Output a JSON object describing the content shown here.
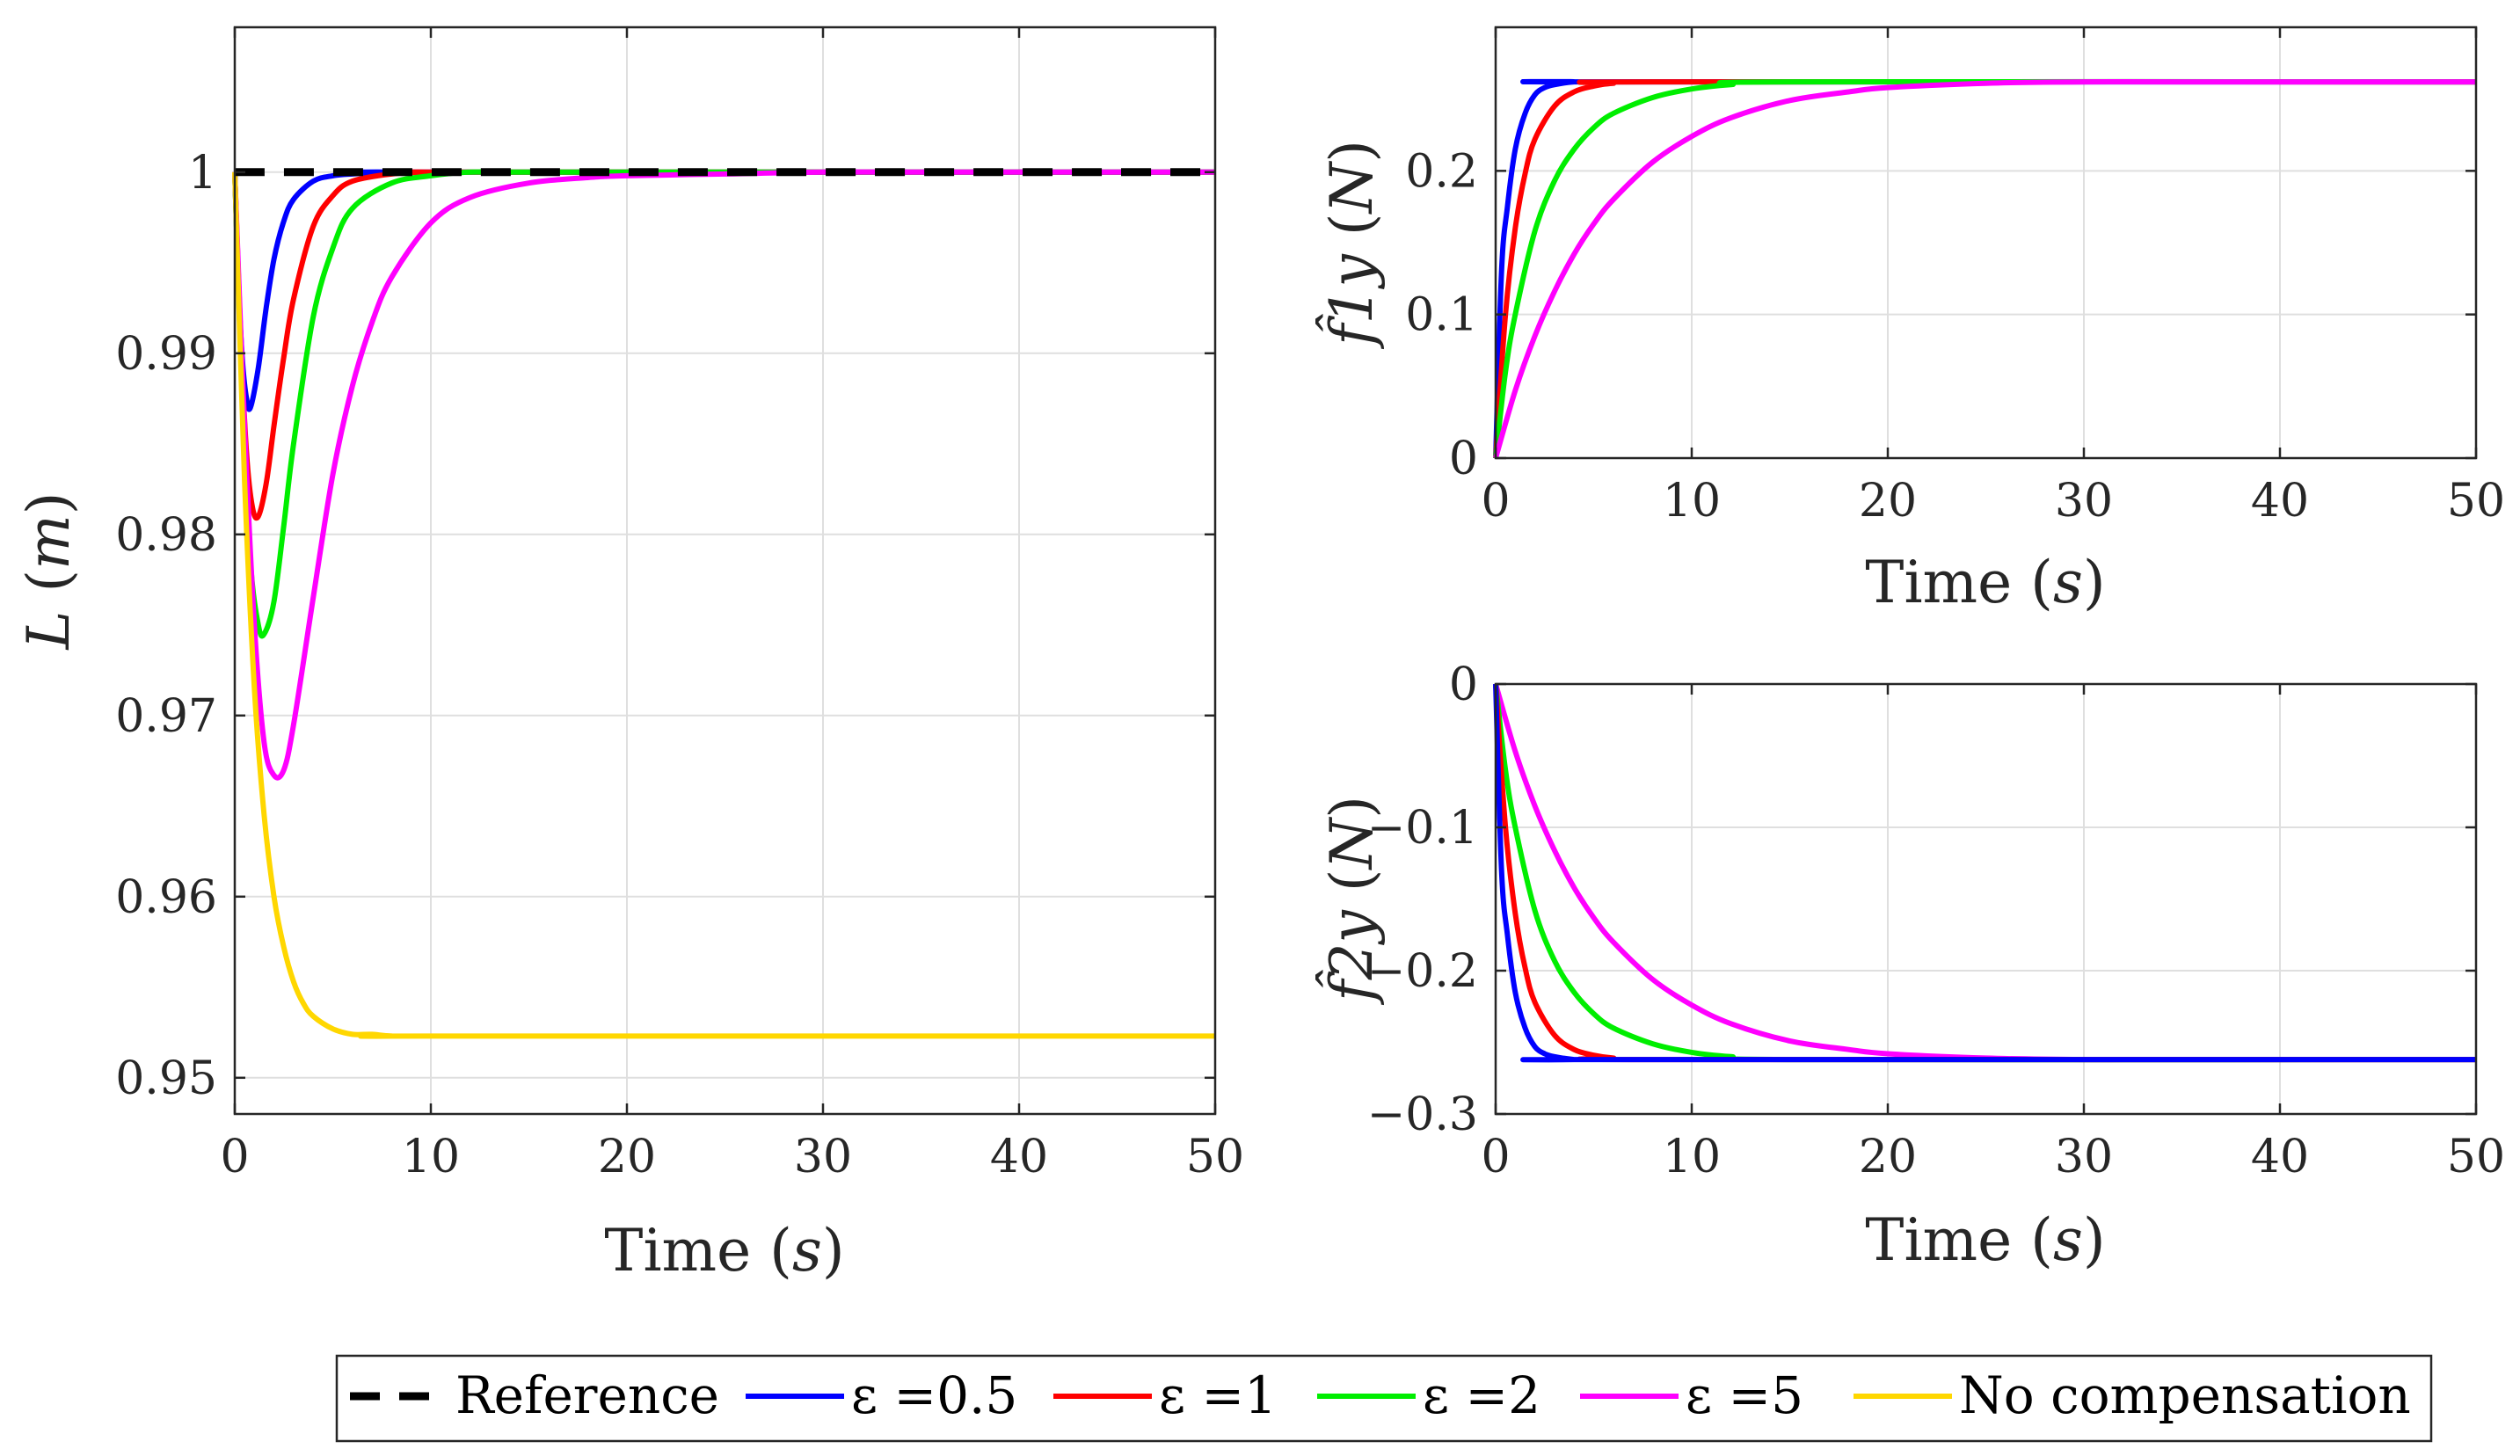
{
  "chart_data": [
    {
      "type": "line",
      "id": "L",
      "xlabel": "Time",
      "xlabel_unit": "s",
      "ylabel": "L",
      "ylabel_unit": "m",
      "xlim": [
        0,
        50
      ],
      "ylim": [
        0.948,
        1.008
      ],
      "xticks": [
        0,
        10,
        20,
        30,
        40,
        50
      ],
      "xtick_labels": [
        "0",
        "10",
        "20",
        "30",
        "40",
        "50"
      ],
      "yticks": [
        0.95,
        0.96,
        0.97,
        0.98,
        0.99,
        1
      ],
      "ytick_labels": [
        "0.95",
        "0.96",
        "0.97",
        "0.98",
        "0.99",
        "1"
      ],
      "grid": true,
      "series": [
        {
          "name": "Reference",
          "color": "#000000",
          "dashed": true,
          "x": [
            0,
            50
          ],
          "y": [
            1.0,
            1.0
          ]
        },
        {
          "name": "ε =0.5",
          "color": "#0000ff",
          "x": [
            0,
            0.2,
            0.4,
            0.6,
            0.8,
            1.2,
            1.6,
            2,
            2.5,
            3,
            4,
            5,
            6,
            8,
            10,
            50
          ],
          "y": [
            1.0,
            0.9935,
            0.9895,
            0.9875,
            0.987,
            0.9892,
            0.9925,
            0.9952,
            0.9973,
            0.9985,
            0.9995,
            0.9998,
            0.9999,
            1.0,
            1.0,
            1.0
          ]
        },
        {
          "name": "ε =1",
          "color": "#ff0000",
          "x": [
            0,
            0.3,
            0.6,
            0.9,
            1.2,
            1.6,
            2,
            2.5,
            3,
            4,
            5,
            6,
            8,
            10,
            12,
            50
          ],
          "y": [
            1.0,
            0.991,
            0.9845,
            0.9815,
            0.981,
            0.9828,
            0.986,
            0.9898,
            0.993,
            0.997,
            0.9987,
            0.9995,
            0.9999,
            1.0,
            1.0,
            1.0
          ]
        },
        {
          "name": "ε =2",
          "color": "#00ee00",
          "x": [
            0,
            0.4,
            0.8,
            1.2,
            1.5,
            2,
            2.5,
            3,
            4,
            5,
            6,
            8,
            10,
            12,
            15,
            20,
            50
          ],
          "y": [
            1.0,
            0.987,
            0.9785,
            0.975,
            0.9745,
            0.9763,
            0.9805,
            0.985,
            0.992,
            0.9958,
            0.998,
            0.9994,
            0.9998,
            1.0,
            1.0,
            1.0,
            1.0
          ]
        },
        {
          "name": "ε =5",
          "color": "#ff00ff",
          "x": [
            0,
            0.5,
            1,
            1.5,
            2,
            2.5,
            3,
            4,
            5,
            6,
            7,
            8,
            10,
            12,
            15,
            18,
            20,
            25,
            30,
            35,
            50
          ],
          "y": [
            1.0,
            0.986,
            0.975,
            0.9685,
            0.9667,
            0.967,
            0.9695,
            0.9765,
            0.9833,
            0.9882,
            0.9917,
            0.9942,
            0.9972,
            0.9986,
            0.9994,
            0.9997,
            0.9998,
            0.9999,
            1.0,
            1.0,
            1.0
          ]
        },
        {
          "name": "No compensation",
          "color": "#ffd700",
          "x": [
            0,
            0.5,
            1,
            1.5,
            2,
            2.5,
            3,
            3.5,
            4,
            5,
            6,
            7,
            8,
            10,
            50
          ],
          "y": [
            1.0,
            0.983,
            0.9715,
            0.9645,
            0.96,
            0.9572,
            0.9553,
            0.9541,
            0.9534,
            0.9527,
            0.9524,
            0.9524,
            0.9523,
            0.9523,
            0.9523
          ]
        }
      ]
    },
    {
      "type": "line",
      "id": "f1",
      "xlabel": "Time",
      "xlabel_unit": "s",
      "ylabel": "f̂1y",
      "ylabel_unit": "N",
      "xlim": [
        0,
        50
      ],
      "ylim": [
        0,
        0.3
      ],
      "xticks": [
        0,
        10,
        20,
        30,
        40,
        50
      ],
      "xtick_labels": [
        "0",
        "10",
        "20",
        "30",
        "40",
        "50"
      ],
      "yticks": [
        0,
        0.1,
        0.2
      ],
      "ytick_labels": [
        "0",
        "0.1",
        "0.2"
      ],
      "grid": true,
      "series": [
        {
          "name": "ε =0.5",
          "color": "#0000ff",
          "x": [
            0,
            0.3,
            0.6,
            1,
            1.5,
            2,
            2.5,
            3,
            4,
            5,
            50
          ],
          "y": [
            0,
            0.13,
            0.175,
            0.215,
            0.24,
            0.253,
            0.258,
            0.26,
            0.262,
            0.262,
            0.262
          ]
        },
        {
          "name": "ε =1",
          "color": "#ff0000",
          "x": [
            0,
            0.5,
            1,
            1.5,
            2,
            3,
            4,
            5,
            6,
            8,
            50
          ],
          "y": [
            0,
            0.1,
            0.16,
            0.198,
            0.222,
            0.245,
            0.255,
            0.259,
            0.261,
            0.262,
            0.262
          ]
        },
        {
          "name": "ε =2",
          "color": "#00ee00",
          "x": [
            0,
            0.5,
            1,
            2,
            3,
            4,
            5,
            6,
            8,
            10,
            12,
            15,
            50
          ],
          "y": [
            0,
            0.06,
            0.1,
            0.158,
            0.193,
            0.215,
            0.23,
            0.24,
            0.251,
            0.257,
            0.26,
            0.262,
            0.262
          ]
        },
        {
          "name": "ε =5",
          "color": "#ff00ff",
          "x": [
            0,
            1,
            2,
            3,
            4,
            5,
            6,
            8,
            10,
            12,
            15,
            18,
            20,
            25,
            30,
            35,
            50
          ],
          "y": [
            0,
            0.047,
            0.085,
            0.116,
            0.142,
            0.163,
            0.18,
            0.206,
            0.224,
            0.237,
            0.249,
            0.255,
            0.258,
            0.261,
            0.262,
            0.262,
            0.262
          ]
        }
      ]
    },
    {
      "type": "line",
      "id": "f2",
      "xlabel": "Time",
      "xlabel_unit": "s",
      "ylabel": "f̂2y",
      "ylabel_unit": "N",
      "xlim": [
        0,
        50
      ],
      "ylim": [
        -0.3,
        0
      ],
      "xticks": [
        0,
        10,
        20,
        30,
        40,
        50
      ],
      "xtick_labels": [
        "0",
        "10",
        "20",
        "30",
        "40",
        "50"
      ],
      "yticks": [
        -0.3,
        -0.2,
        -0.1,
        0
      ],
      "ytick_labels": [
        "−0.3",
        "−0.2",
        "−0.1",
        "0"
      ],
      "grid": true,
      "series": [
        {
          "name": "ε =5",
          "color": "#ff00ff",
          "x": [
            0,
            1,
            2,
            3,
            4,
            5,
            6,
            8,
            10,
            12,
            15,
            18,
            20,
            25,
            30,
            35,
            50
          ],
          "y": [
            0,
            -0.047,
            -0.085,
            -0.116,
            -0.142,
            -0.163,
            -0.18,
            -0.206,
            -0.224,
            -0.237,
            -0.249,
            -0.255,
            -0.258,
            -0.261,
            -0.262,
            -0.262,
            -0.262
          ]
        },
        {
          "name": "ε =2",
          "color": "#00ee00",
          "x": [
            0,
            0.5,
            1,
            2,
            3,
            4,
            5,
            6,
            8,
            10,
            12,
            15,
            50
          ],
          "y": [
            0,
            -0.06,
            -0.1,
            -0.158,
            -0.193,
            -0.215,
            -0.23,
            -0.24,
            -0.251,
            -0.257,
            -0.26,
            -0.262,
            -0.262
          ]
        },
        {
          "name": "ε =1",
          "color": "#ff0000",
          "x": [
            0,
            0.5,
            1,
            1.5,
            2,
            3,
            4,
            5,
            6,
            8,
            50
          ],
          "y": [
            0,
            -0.1,
            -0.16,
            -0.198,
            -0.222,
            -0.245,
            -0.255,
            -0.259,
            -0.261,
            -0.262,
            -0.262
          ]
        },
        {
          "name": "ε =0.5",
          "color": "#0000ff",
          "x": [
            0,
            0.3,
            0.6,
            1,
            1.5,
            2,
            2.5,
            3,
            4,
            5,
            50
          ],
          "y": [
            0,
            -0.13,
            -0.175,
            -0.215,
            -0.24,
            -0.253,
            -0.258,
            -0.26,
            -0.262,
            -0.262,
            -0.262
          ]
        }
      ]
    }
  ],
  "legend": {
    "placement": "bottom-center",
    "items": [
      {
        "label": "Reference",
        "color": "#000000",
        "dashed": true
      },
      {
        "label": "ε =0.5",
        "color": "#0000ff",
        "dashed": false
      },
      {
        "label": "ε =1",
        "color": "#ff0000",
        "dashed": false
      },
      {
        "label": "ε =2",
        "color": "#00ee00",
        "dashed": false
      },
      {
        "label": "ε =5",
        "color": "#ff00ff",
        "dashed": false
      },
      {
        "label": "No compensation",
        "color": "#ffd700",
        "dashed": false
      }
    ]
  }
}
